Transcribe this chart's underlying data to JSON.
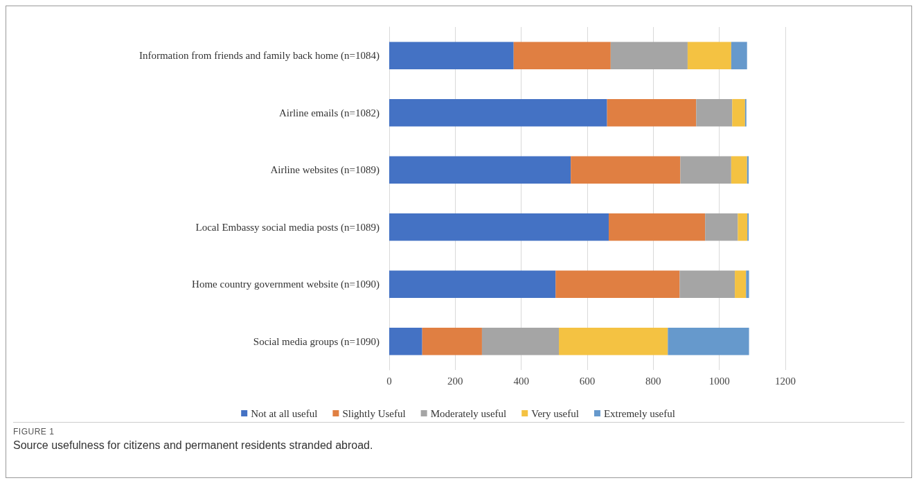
{
  "chart_data": {
    "type": "bar",
    "orientation": "horizontal",
    "stacked": true,
    "categories": [
      "Information from friends and family back home (n=1084)",
      "Airline emails (n=1082)",
      "Airline websites (n=1089)",
      "Local Embassy social media posts (n=1089)",
      "Home country government website (n=1090)",
      "Social media groups (n=1090)"
    ],
    "series": [
      {
        "name": "Not at all useful",
        "color": "#4472c4",
        "values": [
          377,
          660,
          550,
          665,
          504,
          100
        ]
      },
      {
        "name": "Slightly Useful",
        "color": "#e07f42",
        "values": [
          294,
          270,
          332,
          292,
          376,
          181
        ]
      },
      {
        "name": "Moderately useful",
        "color": "#a5a5a5",
        "values": [
          233,
          109,
          154,
          99,
          167,
          233
        ]
      },
      {
        "name": "Very useful",
        "color": "#f4c242",
        "values": [
          132,
          39,
          48,
          29,
          34,
          330
        ]
      },
      {
        "name": "Extremely useful",
        "color": "#6699cc",
        "values": [
          48,
          4,
          5,
          4,
          9,
          246
        ]
      }
    ],
    "xlim": [
      0,
      1200
    ],
    "xticks": [
      0,
      200,
      400,
      600,
      800,
      1000,
      1200
    ],
    "grid": "x",
    "legend": "bottom",
    "annotations": [
      "FIGURE 1",
      "Source usefulness for citizens and permanent residents stranded abroad."
    ]
  }
}
